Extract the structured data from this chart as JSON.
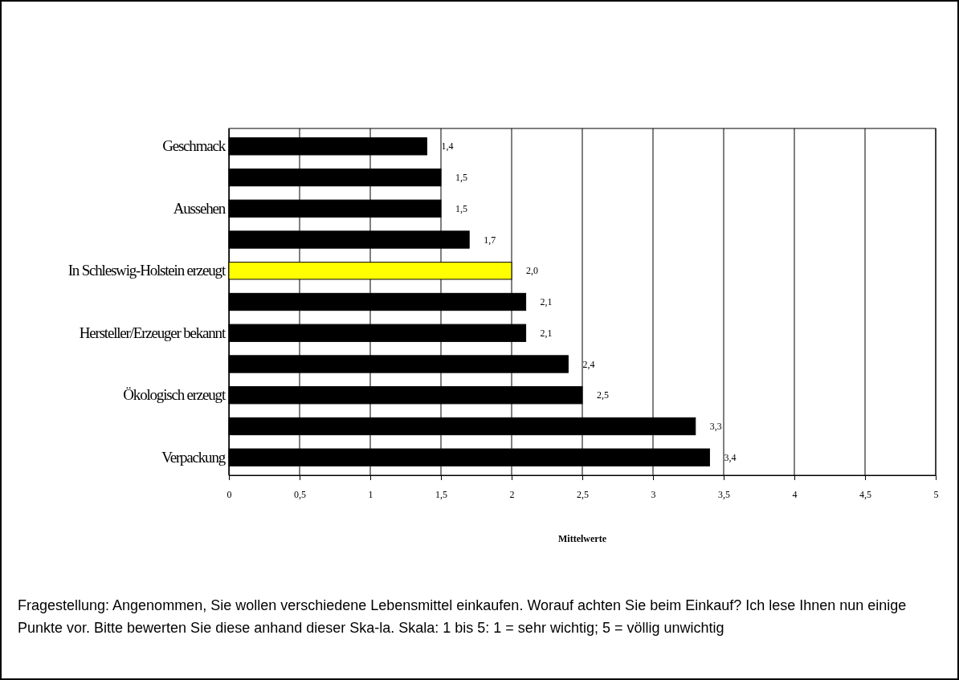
{
  "chart_data": {
    "type": "bar",
    "orientation": "horizontal",
    "categories": [
      "Geschmack",
      null,
      "Aussehen",
      null,
      "In Schleswig-Holstein erzeugt",
      null,
      "Hersteller/Erzeuger bekannt",
      null,
      "Ökologisch erzeugt",
      null,
      "Verpackung"
    ],
    "values": [
      1.4,
      1.5,
      1.5,
      1.7,
      2.0,
      2.1,
      2.1,
      2.4,
      2.5,
      3.3,
      3.4
    ],
    "colors": [
      "#000000",
      "#000000",
      "#000000",
      "#000000",
      "#ffff00",
      "#000000",
      "#000000",
      "#000000",
      "#000000",
      "#000000",
      "#000000"
    ],
    "value_labels": [
      "1,4",
      "1,5",
      "1,5",
      "1,7",
      "2,0",
      "2,1",
      "2,1",
      "2,4",
      "2,5",
      "3,3",
      "3,4"
    ],
    "xlabel": "Mittelwerte",
    "xlim": [
      0,
      5
    ],
    "xticks": [
      0,
      {
        "value": 0.5,
        "label": "0,5"
      },
      1,
      {
        "value": 1.5,
        "label": "1,5"
      },
      2,
      {
        "value": 2.5,
        "label": "2,5"
      },
      3,
      {
        "value": 3.5,
        "label": "3,5"
      },
      4,
      {
        "value": 4.5,
        "label": "4,5"
      },
      5
    ],
    "grid": "x",
    "annotations": [
      "Fragestellung: Angenommen, Sie wollen verschiedene Lebensmittel einkaufen. Worauf achten Sie beim Einkauf? Ich lese Ihnen nun einige Punkte vor. Bitte bewerten Sie diese anhand dieser Ska-la. Skala: 1 bis 5: 1 = sehr wichtig; 5 = völlig unwichtig"
    ]
  }
}
